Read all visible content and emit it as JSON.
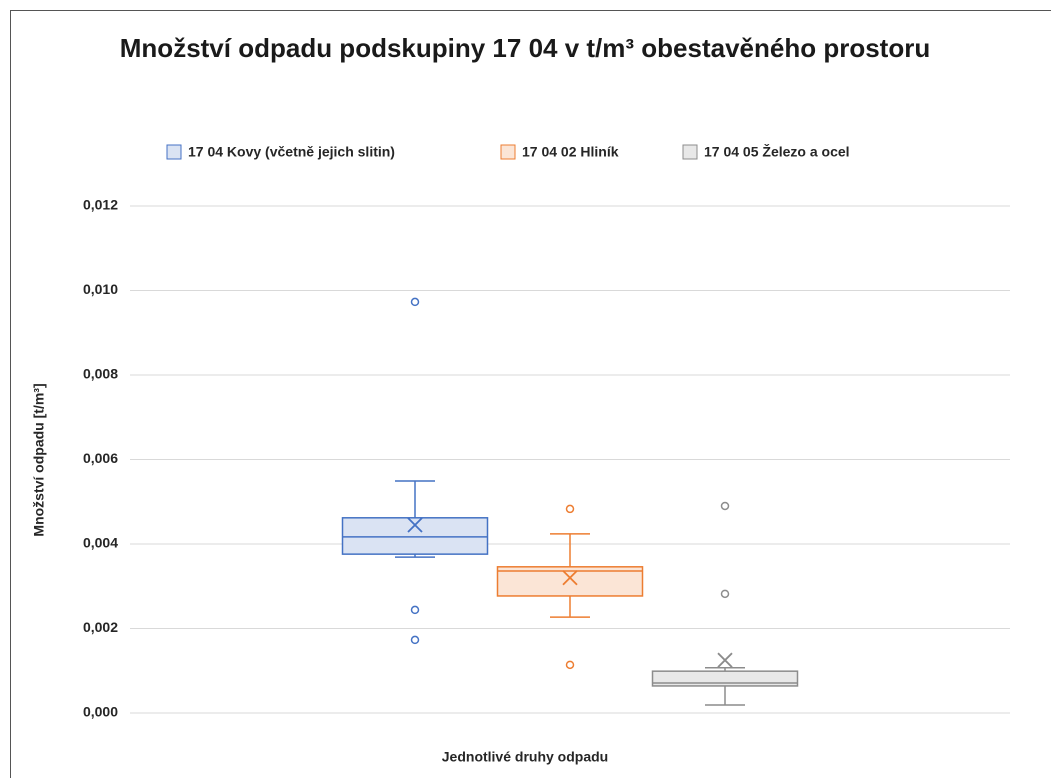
{
  "chart_data": {
    "type": "box",
    "title": "Množství odpadu  podskupiny 17 04 v t/m³ obestavěného prostoru",
    "y_label": "Množství odpadu [t/m³]",
    "x_label": "Jednotlivé druhy odpadu",
    "ylim": [
      0,
      0.012
    ],
    "yticks": [
      {
        "value": 0,
        "label": "0,000"
      },
      {
        "value": 0.002,
        "label": "0,002"
      },
      {
        "value": 0.004,
        "label": "0,004"
      },
      {
        "value": 0.006,
        "label": "0,006"
      },
      {
        "value": 0.008,
        "label": "0,008"
      },
      {
        "value": 0.01,
        "label": "0,010"
      },
      {
        "value": 0.012,
        "label": "0,012"
      }
    ],
    "grid": true,
    "legend": "top",
    "series": [
      {
        "name": "17 04 Kovy (včetně jejich slitin)",
        "color": "#4472c4",
        "whisker_low": 0.00369,
        "q1": 0.00376,
        "median": 0.00417,
        "q3": 0.00462,
        "whisker_high": 0.00549,
        "mean": 0.00445,
        "outliers": [
          0.00973,
          0.00244,
          0.00173
        ]
      },
      {
        "name": "17 04 02 Hliník",
        "color": "#ed7d31",
        "whisker_low": 0.00227,
        "q1": 0.00277,
        "median": 0.00336,
        "q3": 0.00346,
        "whisker_high": 0.00424,
        "mean": 0.0032,
        "outliers": [
          0.00483,
          0.00114
        ]
      },
      {
        "name": "17 04 05 Železo a ocel",
        "color": "#8c8c8c",
        "whisker_low": 0.00019,
        "q1": 0.00064,
        "median": 0.00071,
        "q3": 0.00099,
        "whisker_high": 0.00107,
        "mean": 0.00125,
        "outliers": [
          0.0049,
          0.00282
        ]
      }
    ]
  }
}
